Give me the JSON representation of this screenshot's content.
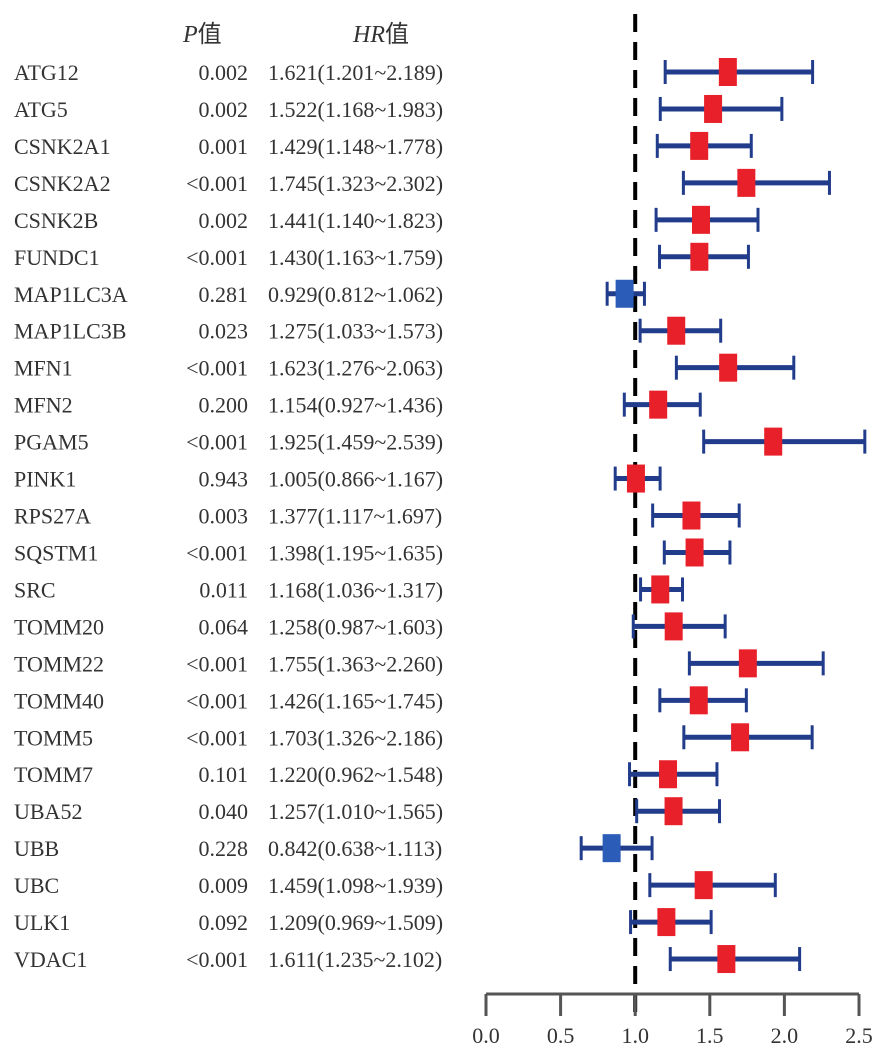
{
  "chart_data": {
    "type": "forest",
    "headers": {
      "p_label": "P",
      "hr_label": "HR",
      "suffix": "值"
    },
    "reference_line": 1.0,
    "x_range": [
      0.0,
      2.5
    ],
    "x_ticks": [
      "0.0",
      "0.5",
      "1.0",
      "1.5",
      "2.0",
      "2.5"
    ],
    "colors": {
      "risk": "#e8202a",
      "protective": "#2a5cb8",
      "ci": "#223c8c",
      "axis": "#555555"
    },
    "rows": [
      {
        "gene": "ATG12",
        "p": "0.002",
        "hr_text": "1.621(1.201~2.189)",
        "hr": 1.621,
        "lo": 1.201,
        "hi": 2.189
      },
      {
        "gene": "ATG5",
        "p": "0.002",
        "hr_text": "1.522(1.168~1.983)",
        "hr": 1.522,
        "lo": 1.168,
        "hi": 1.983
      },
      {
        "gene": "CSNK2A1",
        "p": "0.001",
        "hr_text": "1.429(1.148~1.778)",
        "hr": 1.429,
        "lo": 1.148,
        "hi": 1.778
      },
      {
        "gene": "CSNK2A2",
        "p": "<0.001",
        "hr_text": "1.745(1.323~2.302)",
        "hr": 1.745,
        "lo": 1.323,
        "hi": 2.302
      },
      {
        "gene": "CSNK2B",
        "p": "0.002",
        "hr_text": "1.441(1.140~1.823)",
        "hr": 1.441,
        "lo": 1.14,
        "hi": 1.823
      },
      {
        "gene": "FUNDC1",
        "p": "<0.001",
        "hr_text": "1.430(1.163~1.759)",
        "hr": 1.43,
        "lo": 1.163,
        "hi": 1.759
      },
      {
        "gene": "MAP1LC3A",
        "p": "0.281",
        "hr_text": "0.929(0.812~1.062)",
        "hr": 0.929,
        "lo": 0.812,
        "hi": 1.062
      },
      {
        "gene": "MAP1LC3B",
        "p": "0.023",
        "hr_text": "1.275(1.033~1.573)",
        "hr": 1.275,
        "lo": 1.033,
        "hi": 1.573
      },
      {
        "gene": "MFN1",
        "p": "<0.001",
        "hr_text": "1.623(1.276~2.063)",
        "hr": 1.623,
        "lo": 1.276,
        "hi": 2.063
      },
      {
        "gene": "MFN2",
        "p": "0.200",
        "hr_text": "1.154(0.927~1.436)",
        "hr": 1.154,
        "lo": 0.927,
        "hi": 1.436
      },
      {
        "gene": "PGAM5",
        "p": "<0.001",
        "hr_text": "1.925(1.459~2.539)",
        "hr": 1.925,
        "lo": 1.459,
        "hi": 2.539
      },
      {
        "gene": "PINK1",
        "p": "0.943",
        "hr_text": "1.005(0.866~1.167)",
        "hr": 1.005,
        "lo": 0.866,
        "hi": 1.167
      },
      {
        "gene": "RPS27A",
        "p": "0.003",
        "hr_text": "1.377(1.117~1.697)",
        "hr": 1.377,
        "lo": 1.117,
        "hi": 1.697
      },
      {
        "gene": "SQSTM1",
        "p": "<0.001",
        "hr_text": "1.398(1.195~1.635)",
        "hr": 1.398,
        "lo": 1.195,
        "hi": 1.635
      },
      {
        "gene": "SRC",
        "p": "0.011",
        "hr_text": "1.168(1.036~1.317)",
        "hr": 1.168,
        "lo": 1.036,
        "hi": 1.317
      },
      {
        "gene": "TOMM20",
        "p": "0.064",
        "hr_text": "1.258(0.987~1.603)",
        "hr": 1.258,
        "lo": 0.987,
        "hi": 1.603
      },
      {
        "gene": "TOMM22",
        "p": "<0.001",
        "hr_text": "1.755(1.363~2.260)",
        "hr": 1.755,
        "lo": 1.363,
        "hi": 2.26
      },
      {
        "gene": "TOMM40",
        "p": "<0.001",
        "hr_text": "1.426(1.165~1.745)",
        "hr": 1.426,
        "lo": 1.165,
        "hi": 1.745
      },
      {
        "gene": "TOMM5",
        "p": "<0.001",
        "hr_text": "1.703(1.326~2.186)",
        "hr": 1.703,
        "lo": 1.326,
        "hi": 2.186
      },
      {
        "gene": "TOMM7",
        "p": "0.101",
        "hr_text": "1.220(0.962~1.548)",
        "hr": 1.22,
        "lo": 0.962,
        "hi": 1.548
      },
      {
        "gene": "UBA52",
        "p": "0.040",
        "hr_text": "1.257(1.010~1.565)",
        "hr": 1.257,
        "lo": 1.01,
        "hi": 1.565
      },
      {
        "gene": "UBB",
        "p": "0.228",
        "hr_text": "0.842(0.638~1.113)",
        "hr": 0.842,
        "lo": 0.638,
        "hi": 1.113
      },
      {
        "gene": "UBC",
        "p": "0.009",
        "hr_text": "1.459(1.098~1.939)",
        "hr": 1.459,
        "lo": 1.098,
        "hi": 1.939
      },
      {
        "gene": "ULK1",
        "p": "0.092",
        "hr_text": "1.209(0.969~1.509)",
        "hr": 1.209,
        "lo": 0.969,
        "hi": 1.509
      },
      {
        "gene": "VDAC1",
        "p": "<0.001",
        "hr_text": "1.611(1.235~2.102)",
        "hr": 1.611,
        "lo": 1.235,
        "hi": 2.102
      }
    ]
  }
}
